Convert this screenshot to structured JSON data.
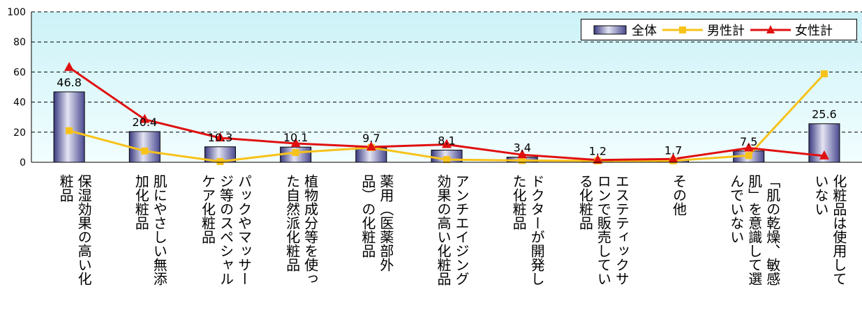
{
  "chart_data": {
    "type": "bar",
    "categories": [
      "保湿効果の高い化\n粧品",
      "肌にやさしい無添\n加化粧品",
      "パックやマッサー\nジ等のスペシャル\nケア化粧品",
      "植物成分等を使っ\nた自然派化粧品",
      "薬用（医薬部外\n品）の化粧品",
      "アンチエイジング\n効果の高い化粧品",
      "ドクターが開発し\nた化粧品",
      "エステティックサ\nロンで販売してい\nる化粧品",
      "その他",
      "「肌の乾燥、敏感\n肌」を意識して選\nんでいない",
      "化粧品は使用して\nいない"
    ],
    "series": [
      {
        "name": "全体",
        "kind": "bar",
        "color": "#6666aa",
        "values": [
          46.8,
          20.4,
          10.3,
          10.1,
          9.7,
          8.1,
          3.4,
          1.2,
          1.7,
          7.5,
          25.6
        ],
        "labels": [
          "46.8",
          "20.4",
          "10.3",
          "10.1",
          "9.7",
          "8.1",
          "3.4",
          "1.2",
          "1.7",
          "7.5",
          "25.6"
        ]
      },
      {
        "name": "男性計",
        "kind": "line",
        "color": "#f7c21a",
        "marker": "square",
        "values": [
          21,
          7.5,
          0.5,
          6.5,
          9.8,
          1.8,
          1.2,
          1.0,
          1.0,
          4.5,
          58.8
        ]
      },
      {
        "name": "女性計",
        "kind": "line",
        "color": "#e01010",
        "marker": "triangle",
        "values": [
          63,
          28.5,
          16.2,
          12.5,
          10.2,
          11.8,
          5.0,
          1.5,
          2.2,
          9.5,
          4.2
        ]
      }
    ],
    "ylim": [
      0,
      100
    ],
    "yticks": [
      "0",
      "20",
      "40",
      "60",
      "80",
      "100"
    ],
    "grid": true,
    "legend_position": "top-right"
  }
}
